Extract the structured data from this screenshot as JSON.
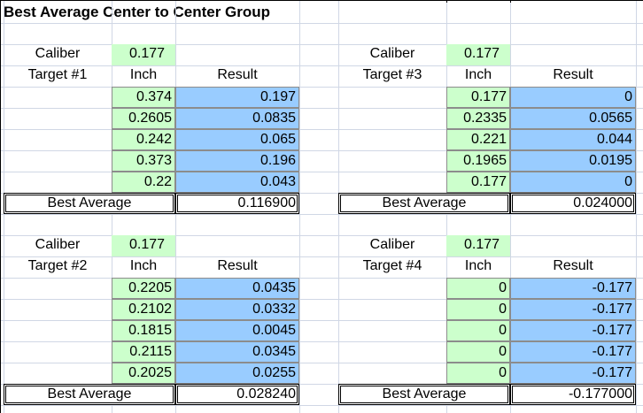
{
  "title": "Best Average Center to Center Group",
  "labels": {
    "caliber": "Caliber",
    "inch": "Inch",
    "result": "Result",
    "best_average": "Best Average"
  },
  "targets": [
    {
      "name": "Target #1",
      "caliber": "0.177",
      "inch": [
        "0.374",
        "0.2605",
        "0.242",
        "0.373",
        "0.22"
      ],
      "result": [
        "0.197",
        "0.0835",
        "0.065",
        "0.196",
        "0.043"
      ],
      "best_average": "0.116900"
    },
    {
      "name": "Target #3",
      "caliber": "0.177",
      "inch": [
        "0.177",
        "0.2335",
        "0.221",
        "0.1965",
        "0.177"
      ],
      "result": [
        "0",
        "0.0565",
        "0.044",
        "0.0195",
        "0"
      ],
      "best_average": "0.024000"
    },
    {
      "name": "Target #2",
      "caliber": "0.177",
      "inch": [
        "0.2205",
        "0.2102",
        "0.1815",
        "0.2115",
        "0.2025"
      ],
      "result": [
        "0.0435",
        "0.0332",
        "0.0045",
        "0.0345",
        "0.0255"
      ],
      "best_average": "0.028240"
    },
    {
      "name": "Target #4",
      "caliber": "0.177",
      "inch": [
        "0",
        "0",
        "0",
        "0",
        "0"
      ],
      "result": [
        "-0.177",
        "-0.177",
        "-0.177",
        "-0.177",
        "-0.177"
      ],
      "best_average": "-0.177000"
    }
  ],
  "colors": {
    "input_green": "#ccffcc",
    "result_blue": "#99ccff",
    "gridline": "#d0d7e5"
  }
}
